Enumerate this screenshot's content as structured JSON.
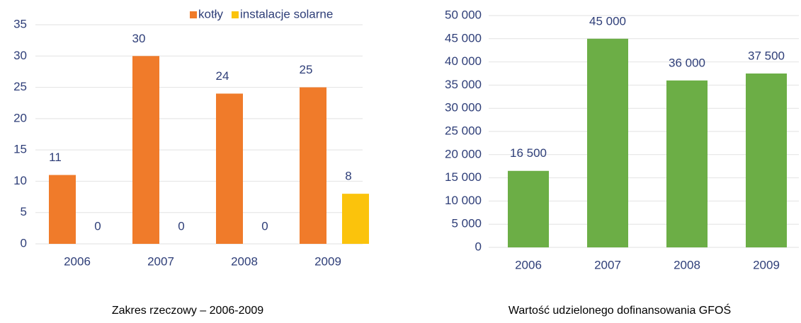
{
  "chart_data": [
    {
      "type": "bar",
      "title": "Zakres rzeczowy – 2006-2009",
      "categories": [
        "2006",
        "2007",
        "2008",
        "2009"
      ],
      "series": [
        {
          "name": "kotły",
          "color": "#f07b2a",
          "values": [
            11,
            30,
            24,
            25
          ]
        },
        {
          "name": "instalacje solarne",
          "color": "#fbc30c",
          "values": [
            0,
            0,
            0,
            8
          ]
        }
      ],
      "ylim": [
        0,
        35
      ],
      "yticks": [
        0,
        5,
        10,
        15,
        20,
        25,
        30,
        35
      ],
      "grid": true,
      "legend": "top-right"
    },
    {
      "type": "bar",
      "title": "Wartość udzielonego dofinansowania GFOŚ",
      "categories": [
        "2006",
        "2007",
        "2008",
        "2009"
      ],
      "series": [
        {
          "color": "#6cae46",
          "values": [
            16500,
            45000,
            36000,
            37500
          ],
          "value_labels": [
            "16 500",
            "45 000",
            "36 000",
            "37 500"
          ]
        }
      ],
      "ylim": [
        0,
        50000
      ],
      "yticks": [
        0,
        {
          "value": 5000,
          "label": "5 000"
        },
        {
          "value": 10000,
          "label": "10 000"
        },
        {
          "value": 15000,
          "label": "15 000"
        },
        {
          "value": 20000,
          "label": "20 000"
        },
        {
          "value": 25000,
          "label": "25 000"
        },
        {
          "value": 30000,
          "label": "30 000"
        },
        {
          "value": 35000,
          "label": "35 000"
        },
        {
          "value": 40000,
          "label": "40 000"
        },
        {
          "value": 45000,
          "label": "45 000"
        },
        {
          "value": 50000,
          "label": "50 000"
        }
      ],
      "grid": true
    }
  ]
}
